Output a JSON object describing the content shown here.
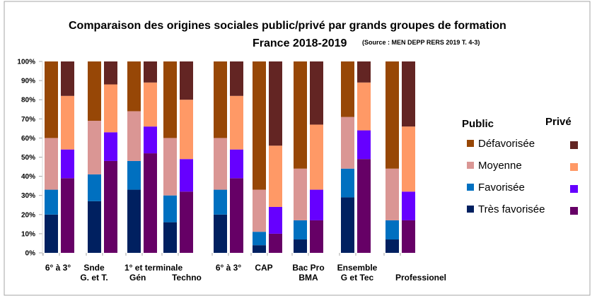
{
  "chart_data": {
    "type": "bar",
    "stacked": true,
    "percent": true,
    "title": "Comparaison des origines sociales public/privé par grands groupes de formation",
    "subtitle": "France 2018-2019",
    "source": "(Source : MEN DEPP RERS 2019 T. 4-3)",
    "ylim": [
      0,
      100
    ],
    "yticks": [
      "0%",
      "10%",
      "20%",
      "30%",
      "40%",
      "50%",
      "60%",
      "70%",
      "80%",
      "90%",
      "100%"
    ],
    "legend": {
      "placement": "right",
      "public_heading": "Public",
      "private_heading": "Privé",
      "items": [
        "Défavorisée",
        "Moyenne",
        "Favorisée",
        "Très favorisée"
      ]
    },
    "segments": [
      "Très favorisée",
      "Favorisée",
      "Moyenne",
      "Défavorisée"
    ],
    "colors": {
      "public": [
        "#002060",
        "#0070C0",
        "#DA9694",
        "#974706"
      ],
      "private": [
        "#660066",
        "#6600FF",
        "#FF9966",
        "#632523"
      ]
    },
    "categories": [
      {
        "lines": [
          "6° à 3°"
        ],
        "public": [
          20,
          13,
          27,
          40
        ],
        "private": [
          39,
          15,
          28,
          18
        ]
      },
      {
        "lines": [
          "Snde",
          "G. et T."
        ],
        "public": [
          27,
          14,
          28,
          31
        ],
        "private": [
          48,
          15,
          25,
          12
        ]
      },
      {
        "lines": [
          "1° et terminale",
          "Gén"
        ],
        "public": [
          33,
          15,
          26,
          26
        ],
        "private": [
          52,
          14,
          23,
          11
        ]
      },
      {
        "lines": [
          "",
          "Techno"
        ],
        "public": [
          16,
          14,
          30,
          40
        ],
        "private": [
          32,
          17,
          31,
          20
        ]
      },
      {
        "lines": [
          "6° à 3°"
        ],
        "public": [
          20,
          13,
          27,
          40
        ],
        "private": [
          39,
          15,
          28,
          18
        ]
      },
      {
        "lines": [
          "CAP"
        ],
        "public": [
          4,
          7,
          22,
          67
        ],
        "private": [
          10,
          14,
          32,
          44
        ]
      },
      {
        "lines": [
          "Bac Pro",
          "BMA"
        ],
        "public": [
          7,
          10,
          27,
          56
        ],
        "private": [
          17,
          16,
          34,
          33
        ]
      },
      {
        "lines": [
          "Ensemble",
          "G et Tec"
        ],
        "public": [
          29,
          15,
          27,
          29
        ],
        "private": [
          49,
          15,
          25,
          11
        ]
      },
      {
        "lines": [
          "",
          "Professionel"
        ],
        "public": [
          7,
          10,
          27,
          56
        ],
        "private": [
          17,
          15,
          34,
          34
        ]
      }
    ]
  }
}
